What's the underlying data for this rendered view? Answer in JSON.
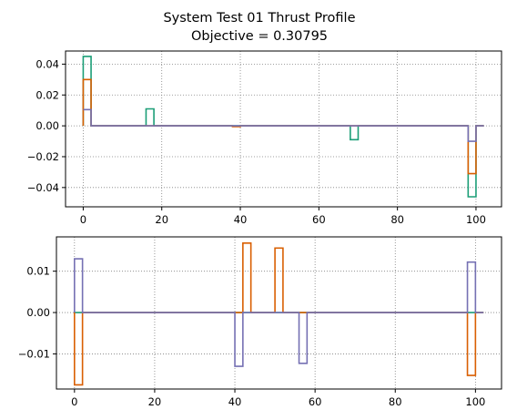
{
  "title_line1": "System Test 01 Thrust Profile",
  "title_line2": "Objective = 0.30795",
  "colors": {
    "series_a": "#1b9e77",
    "series_b": "#d95f02",
    "series_c": "#7570b3"
  },
  "chart_data": [
    {
      "type": "line",
      "drawstyle": "steps",
      "grid": true,
      "xlim": [
        -4.5,
        106.5
      ],
      "ylim": [
        -0.0525,
        0.0485
      ],
      "xticks": [
        0,
        20,
        40,
        60,
        80,
        100
      ],
      "yticks": [
        0.04,
        0.02,
        0.0,
        -0.02,
        -0.04
      ],
      "xtick_labels": [
        "0",
        "20",
        "40",
        "60",
        "80",
        "100"
      ],
      "ytick_labels": [
        "0.04",
        "0.02",
        "0.00",
        "−0.02",
        "−0.04"
      ],
      "series": [
        {
          "color_key": "series_a",
          "points": [
            [
              0,
              0
            ],
            [
              0,
              0.045
            ],
            [
              2,
              0.045
            ],
            [
              2,
              0
            ],
            [
              16,
              0
            ],
            [
              16,
              0.011
            ],
            [
              18,
              0.011
            ],
            [
              18,
              0
            ],
            [
              68,
              0
            ],
            [
              68,
              -0.009
            ],
            [
              70,
              -0.009
            ],
            [
              70,
              0
            ],
            [
              98,
              0
            ],
            [
              98,
              -0.046
            ],
            [
              100,
              -0.046
            ],
            [
              100,
              0
            ],
            [
              102,
              0
            ]
          ]
        },
        {
          "color_key": "series_b",
          "points": [
            [
              0,
              0
            ],
            [
              0,
              0.03
            ],
            [
              2,
              0.03
            ],
            [
              2,
              0
            ],
            [
              38,
              0
            ],
            [
              38,
              -0.0005
            ],
            [
              40,
              -0.0005
            ],
            [
              40,
              0
            ],
            [
              98,
              0
            ],
            [
              98,
              -0.031
            ],
            [
              100,
              -0.031
            ],
            [
              100,
              0
            ],
            [
              102,
              0
            ]
          ]
        },
        {
          "color_key": "series_c",
          "points": [
            [
              0,
              0.0105
            ],
            [
              2,
              0.0105
            ],
            [
              2,
              0
            ],
            [
              98,
              0
            ],
            [
              98,
              -0.01
            ],
            [
              100,
              -0.01
            ],
            [
              100,
              0
            ],
            [
              102,
              0
            ]
          ]
        }
      ]
    },
    {
      "type": "line",
      "drawstyle": "steps",
      "grid": true,
      "xlim": [
        -4.5,
        106.5
      ],
      "ylim": [
        -0.0185,
        0.0183
      ],
      "xticks": [
        0,
        20,
        40,
        60,
        80,
        100
      ],
      "yticks": [
        0.01,
        0.0,
        -0.01
      ],
      "xtick_labels": [
        "0",
        "20",
        "40",
        "60",
        "80",
        "100"
      ],
      "ytick_labels": [
        "0.01",
        "0.00",
        "−0.01"
      ],
      "series": [
        {
          "color_key": "series_a",
          "points": [
            [
              0,
              0
            ],
            [
              102,
              0
            ]
          ]
        },
        {
          "color_key": "series_b",
          "points": [
            [
              0,
              0
            ],
            [
              0,
              -0.0175
            ],
            [
              2,
              -0.0175
            ],
            [
              2,
              0
            ],
            [
              42,
              0
            ],
            [
              42,
              0.0168
            ],
            [
              44,
              0.0168
            ],
            [
              44,
              0
            ],
            [
              50,
              0
            ],
            [
              50,
              0.0156
            ],
            [
              52,
              0.0156
            ],
            [
              52,
              0
            ],
            [
              98,
              0
            ],
            [
              98,
              -0.0152
            ],
            [
              100,
              -0.0152
            ],
            [
              100,
              0
            ],
            [
              102,
              0
            ]
          ]
        },
        {
          "color_key": "series_c",
          "points": [
            [
              0,
              0
            ],
            [
              0,
              0.013
            ],
            [
              2,
              0.013
            ],
            [
              2,
              0
            ],
            [
              40,
              0
            ],
            [
              40,
              -0.013
            ],
            [
              42,
              -0.013
            ],
            [
              42,
              0
            ],
            [
              56,
              0
            ],
            [
              56,
              -0.0123
            ],
            [
              58,
              -0.0123
            ],
            [
              58,
              0
            ],
            [
              98,
              0
            ],
            [
              98,
              0.0122
            ],
            [
              100,
              0.0122
            ],
            [
              100,
              0
            ],
            [
              102,
              0
            ]
          ]
        }
      ]
    }
  ]
}
